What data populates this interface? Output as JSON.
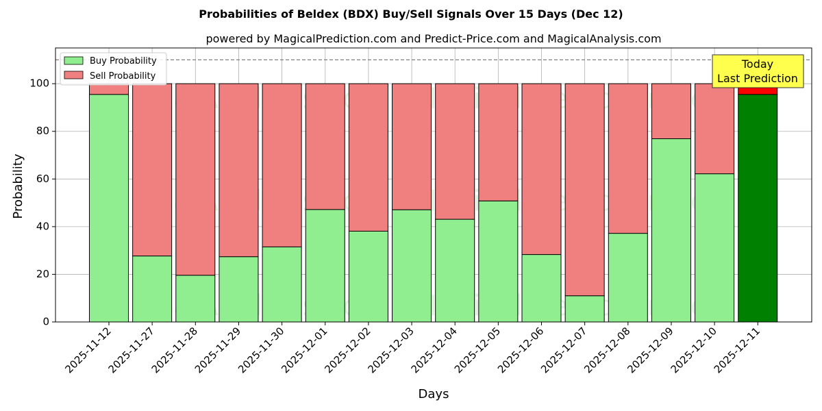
{
  "chart_data": {
    "type": "bar",
    "stacked": true,
    "title": "Probabilities of Beldex (BDX) Buy/Sell Signals Over 15 Days (Dec 12)",
    "subtitle": "powered by MagicalPrediction.com and Predict-Price.com and MagicalAnalysis.com",
    "xlabel": "Days",
    "ylabel": "Probability",
    "ylim": [
      0,
      115
    ],
    "yticks": [
      0,
      20,
      40,
      60,
      80,
      100
    ],
    "reference_line": 110,
    "grid": true,
    "legend_position": "top-left",
    "categories": [
      "2025-11-12",
      "2025-11-27",
      "2025-11-28",
      "2025-11-29",
      "2025-11-30",
      "2025-12-01",
      "2025-12-02",
      "2025-12-03",
      "2025-12-04",
      "2025-12-05",
      "2025-12-06",
      "2025-12-07",
      "2025-12-08",
      "2025-12-09",
      "2025-12-10",
      "2025-12-11"
    ],
    "series": [
      {
        "name": "Buy Probability",
        "color": "#90ee90",
        "values": [
          95.5,
          27.7,
          19.6,
          27.4,
          31.5,
          47.2,
          38.1,
          47.1,
          43.1,
          50.8,
          28.3,
          11.0,
          37.2,
          76.9,
          62.2,
          95.5
        ]
      },
      {
        "name": "Sell Probability",
        "color": "#f08080",
        "values": [
          4.5,
          72.3,
          80.4,
          72.6,
          68.5,
          52.8,
          61.9,
          52.9,
          56.9,
          49.2,
          71.7,
          89.0,
          62.8,
          23.1,
          37.8,
          4.5
        ]
      }
    ],
    "highlight": {
      "index": 15,
      "buy_color": "#008000",
      "sell_color": "#ff0000"
    },
    "annotation": {
      "lines": [
        "Today",
        "Last Prediction"
      ],
      "background": "#ffff4d"
    },
    "watermarks": [
      "MagicalAnalysis.com",
      "MagicalPrediction.com"
    ]
  }
}
